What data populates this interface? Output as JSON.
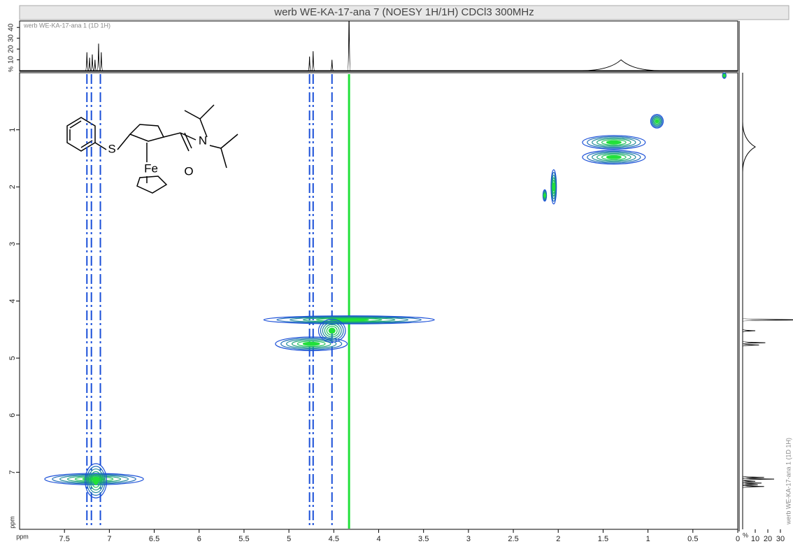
{
  "title": "werb WE-KA-17-ana 7 (NOESY 1H/1H) CDCl3 300MHz",
  "molecule_labels": [
    "S",
    "Fe",
    "N",
    "O"
  ],
  "chart_data": {
    "type": "contour",
    "x_label": "ppm",
    "y_label": "ppm",
    "xlim": [
      8.0,
      0.0
    ],
    "ylim": [
      0.0,
      8.0
    ],
    "xticks": [
      7.5,
      7,
      6.5,
      6,
      5.5,
      5,
      4.5,
      4,
      3.5,
      3,
      2.5,
      2,
      1.5,
      1,
      0.5,
      0
    ],
    "yticks": [
      1,
      2,
      3,
      4,
      5,
      6,
      7
    ],
    "colors": [
      "#1a4fd8",
      "#22e03a"
    ],
    "peaks": [
      {
        "x": 7.17,
        "y": 7.12,
        "x_extent": 0.55,
        "y_extent": 0.1
      },
      {
        "x": 7.15,
        "y": 7.15,
        "x_extent": 0.12,
        "y_extent": 0.3
      },
      {
        "x": 4.33,
        "y": 4.33,
        "x_extent": 0.95,
        "y_extent": 0.07
      },
      {
        "x": 4.75,
        "y": 4.75,
        "x_extent": 0.4,
        "y_extent": 0.12
      },
      {
        "x": 4.52,
        "y": 4.52,
        "x_extent": 0.15,
        "y_extent": 0.2
      },
      {
        "x": 1.38,
        "y": 1.22,
        "x_extent": 0.35,
        "y_extent": 0.12
      },
      {
        "x": 1.38,
        "y": 1.48,
        "x_extent": 0.35,
        "y_extent": 0.12
      },
      {
        "x": 2.05,
        "y": 2.0,
        "x_extent": 0.03,
        "y_extent": 0.3
      },
      {
        "x": 2.15,
        "y": 2.15,
        "x_extent": 0.02,
        "y_extent": 0.1
      },
      {
        "x": 0.9,
        "y": 0.85,
        "x_extent": 0.07,
        "y_extent": 0.12
      },
      {
        "x": 0.15,
        "y": 0.05,
        "x_extent": 0.02,
        "y_extent": 0.05
      }
    ],
    "streaks_x": [
      7.25,
      7.2,
      7.1,
      4.77,
      4.73,
      4.52,
      4.33
    ],
    "projection": {
      "name": "werb WE-KA-17-ana 1 (1D 1H)",
      "value_label": "%",
      "x": [
        7.25,
        7.22,
        7.19,
        7.16,
        7.12,
        7.09,
        4.77,
        4.73,
        4.52,
        4.33,
        1.3
      ],
      "values": [
        17,
        12,
        15,
        10,
        25,
        17,
        13,
        18,
        10,
        60,
        10
      ],
      "linewidths": [
        0.006,
        0.006,
        0.006,
        0.006,
        0.006,
        0.006,
        0.007,
        0.007,
        0.007,
        0.007,
        0.22
      ],
      "ylim": [
        0,
        46
      ],
      "yticks": [
        10,
        20,
        30,
        40
      ],
      "xlim_side": [
        0,
        35
      ],
      "xticks_side": [
        10,
        20,
        30
      ]
    }
  }
}
